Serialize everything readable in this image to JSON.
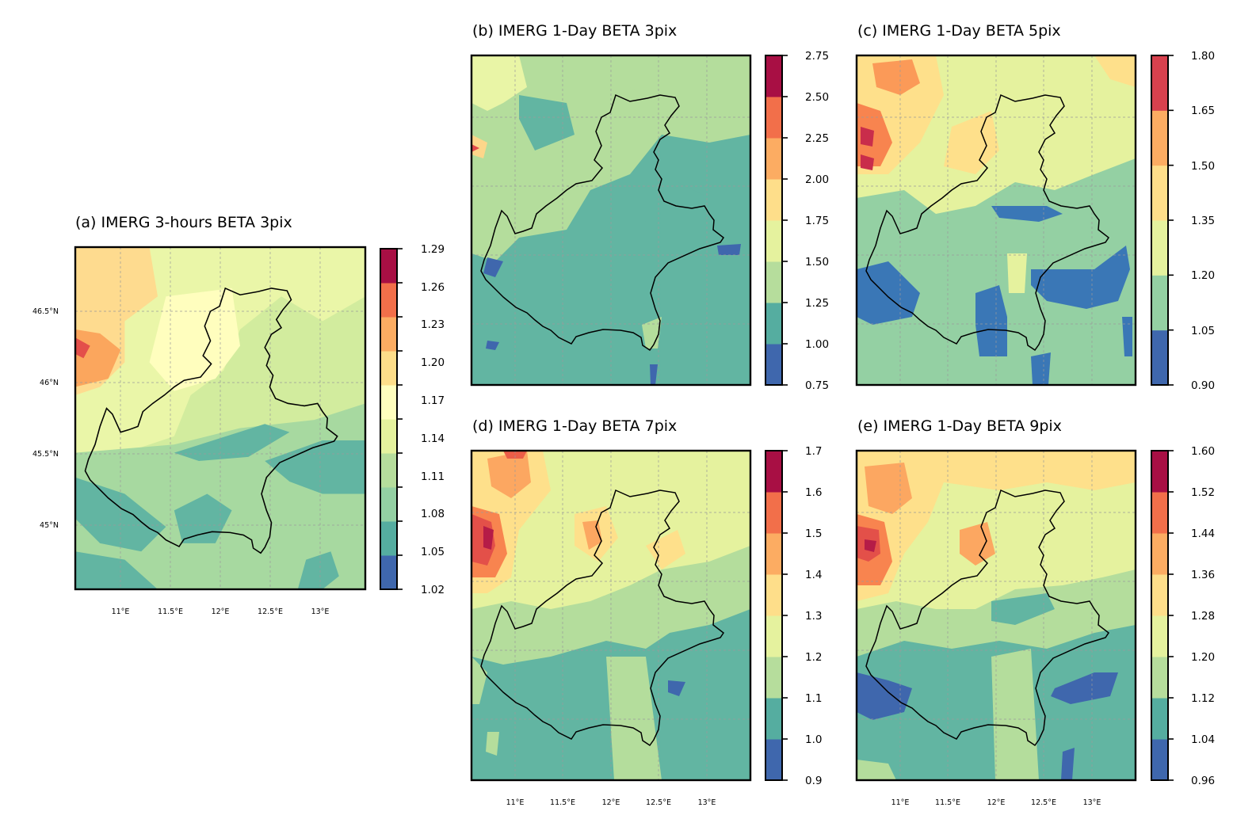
{
  "panels": [
    {
      "id": "a",
      "title": "(a) IMERG 3-hours BETA 3pix",
      "colorbar": [
        "1.29",
        "1.26",
        "1.23",
        "1.20",
        "1.17",
        "1.14",
        "1.11",
        "1.08",
        "1.05",
        "1.02"
      ],
      "lat_labels": [
        "46.5°N",
        "46°N",
        "45.5°N",
        "45°N"
      ],
      "lon_labels": [
        "11°E",
        "11.5°E",
        "12°E",
        "12.5°E",
        "13°E"
      ]
    },
    {
      "id": "b",
      "title": "(b) IMERG 1-Day BETA 3pix",
      "colorbar": [
        "2.75",
        "2.50",
        "2.25",
        "2.00",
        "1.75",
        "1.50",
        "1.25",
        "1.00",
        "0.75"
      ],
      "lat_labels": [],
      "lon_labels": []
    },
    {
      "id": "c",
      "title": "(c) IMERG 1-Day BETA 5pix",
      "colorbar": [
        "1.80",
        "1.65",
        "1.50",
        "1.35",
        "1.20",
        "1.05",
        "0.90"
      ],
      "lat_labels": [],
      "lon_labels": []
    },
    {
      "id": "d",
      "title": "(d) IMERG 1-Day BETA 7pix",
      "colorbar": [
        "1.7",
        "1.6",
        "1.5",
        "1.4",
        "1.3",
        "1.2",
        "1.1",
        "1.0",
        "0.9"
      ],
      "lat_labels": [],
      "lon_labels": [
        "11°E",
        "11.5°E",
        "12°E",
        "12.5°E",
        "13°E"
      ]
    },
    {
      "id": "e",
      "title": "(e) IMERG 1-Day BETA 9pix",
      "colorbar": [
        "1.60",
        "1.52",
        "1.44",
        "1.36",
        "1.28",
        "1.20",
        "1.12",
        "1.04",
        "0.96"
      ],
      "lat_labels": [],
      "lon_labels": [
        "11°E",
        "11.5°E",
        "12°E",
        "12.5°E",
        "13°E"
      ]
    }
  ],
  "colors": {
    "spectral": [
      "#3f67ad",
      "#55ada0",
      "#94d0a3",
      "#b6dd9c",
      "#e5f29e",
      "#fffebe",
      "#fede8a",
      "#fcac62",
      "#f26f4a",
      "#d7414e",
      "#a80f44"
    ],
    "grid": "#9a9a9a",
    "boundary": "#000000"
  }
}
